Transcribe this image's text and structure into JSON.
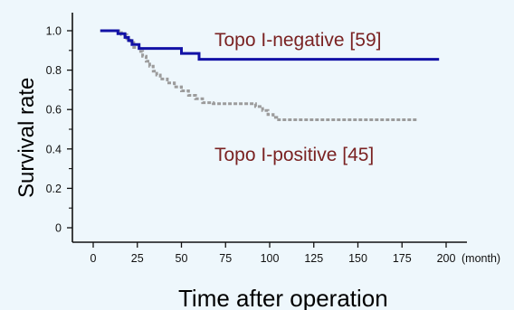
{
  "chart_data": {
    "type": "line",
    "subtype": "kaplan-meier step curve",
    "xlabel": "Time after operation",
    "x_unit": "(month)",
    "ylabel": "Survival rate",
    "xlim": [
      -10,
      210
    ],
    "ylim": [
      -0.03,
      1.08
    ],
    "x_ticks": [
      "0",
      "25",
      "50",
      "75",
      "100",
      "125",
      "150",
      "175",
      "200"
    ],
    "x_tick_values": [
      0,
      25,
      50,
      75,
      100,
      125,
      150,
      175,
      200
    ],
    "y_ticks": [
      "0",
      "0.2",
      "0.4",
      "0.6",
      "0.8",
      "1.0"
    ],
    "y_tick_values": [
      0,
      0.2,
      0.4,
      0.6,
      0.8,
      1.0
    ],
    "grid": false,
    "legend": "inline labels",
    "colors": {
      "negative": "#1212a6",
      "positive": "#9c9c9c",
      "label_text": "#7a2222",
      "background": "#eef7fc"
    },
    "series": [
      {
        "name": "Topo I-negative [59]",
        "line_style": "solid",
        "x": [
          4,
          14,
          18,
          20,
          22,
          26,
          50,
          60,
          196
        ],
        "y": [
          1.0,
          0.985,
          0.966,
          0.95,
          0.93,
          0.91,
          0.885,
          0.855,
          0.855
        ]
      },
      {
        "name": "Topo I-positive [45]",
        "line_style": "dashed",
        "x": [
          4,
          16,
          19,
          21,
          23,
          26,
          28,
          30,
          32,
          34,
          36,
          38,
          42,
          46,
          50,
          54,
          58,
          62,
          68,
          92,
          96,
          99,
          102,
          104,
          184
        ],
        "y": [
          1.0,
          0.98,
          0.96,
          0.94,
          0.915,
          0.895,
          0.87,
          0.845,
          0.82,
          0.795,
          0.775,
          0.755,
          0.735,
          0.715,
          0.695,
          0.672,
          0.655,
          0.635,
          0.63,
          0.615,
          0.595,
          0.575,
          0.56,
          0.548,
          0.548
        ]
      }
    ]
  }
}
